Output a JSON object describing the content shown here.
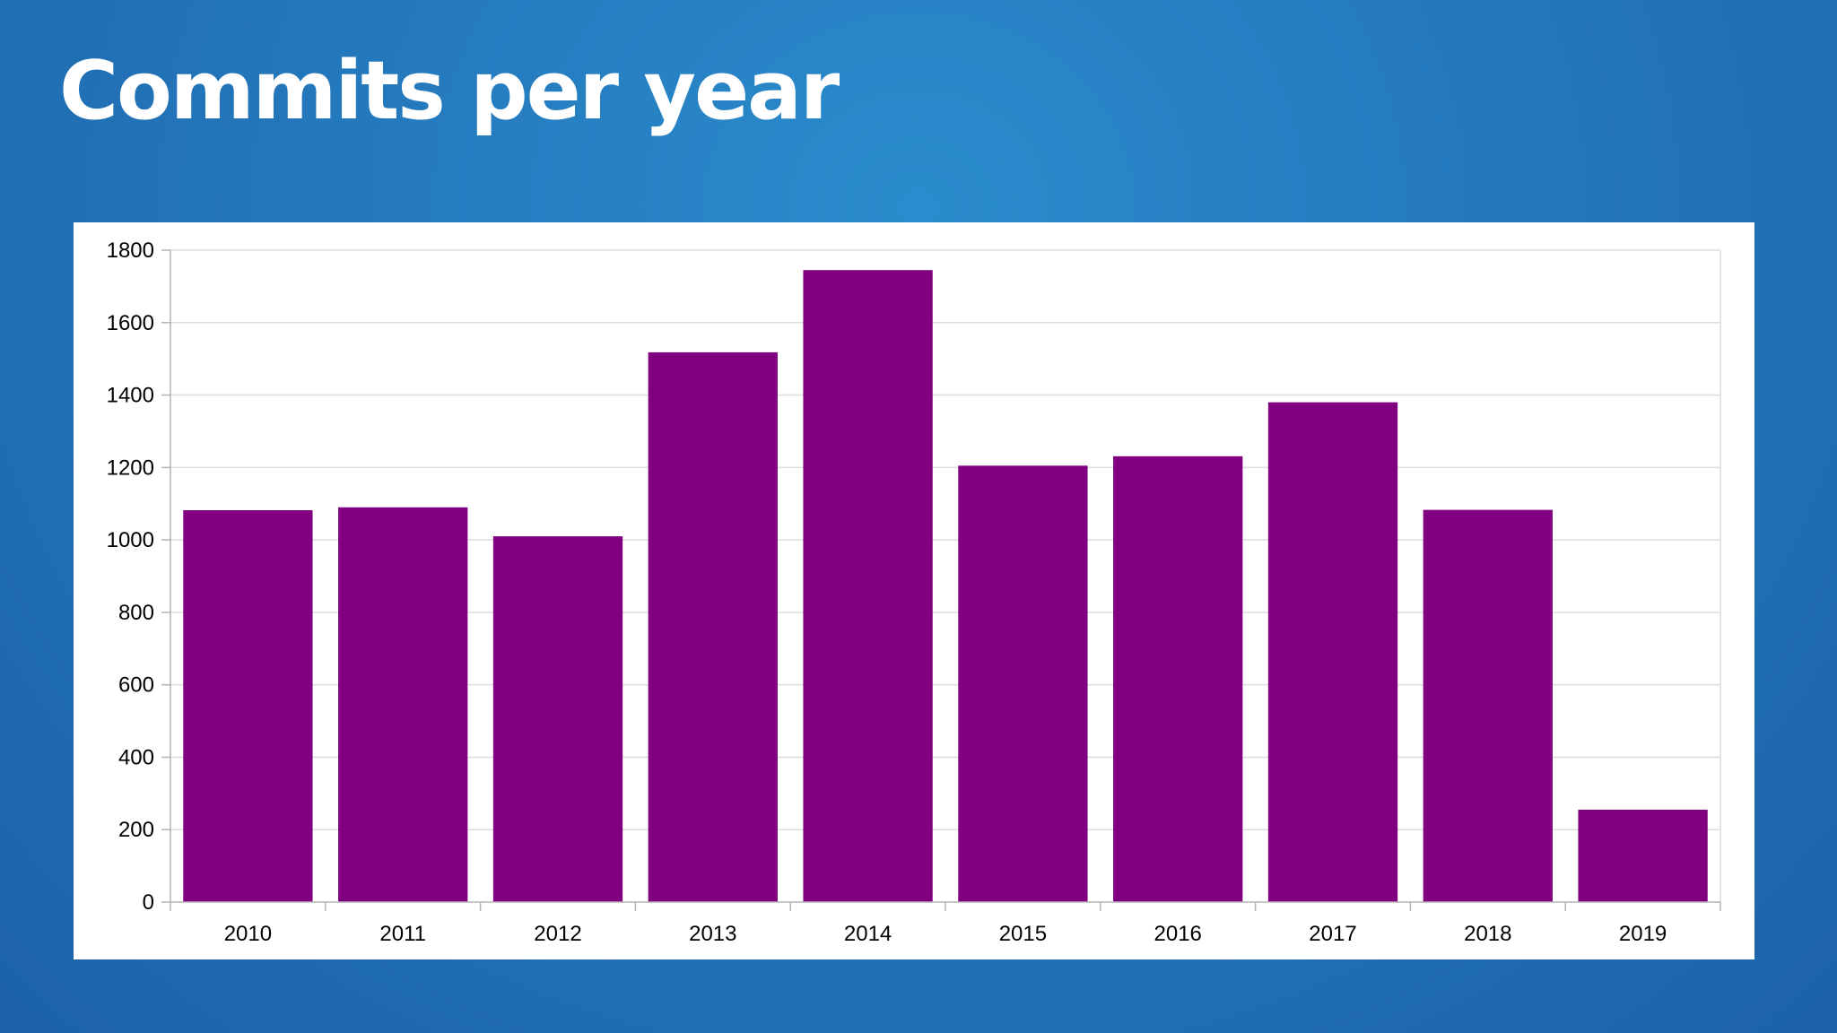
{
  "slide": {
    "title": "Commits per year"
  },
  "chart_data": {
    "type": "bar",
    "title": "",
    "xlabel": "",
    "ylabel": "",
    "categories": [
      "2010",
      "2011",
      "2012",
      "2013",
      "2014",
      "2015",
      "2016",
      "2017",
      "2018",
      "2019"
    ],
    "values": [
      1082,
      1090,
      1010,
      1518,
      1745,
      1205,
      1231,
      1380,
      1083,
      255
    ],
    "ylim": [
      0,
      1800
    ],
    "yticks": [
      0,
      200,
      400,
      600,
      800,
      1000,
      1200,
      1400,
      1600,
      1800
    ],
    "grid": true,
    "legend": "none",
    "colors": {
      "bar": "#800080",
      "grid": "#dddddd",
      "axis": "#b3b3b3"
    }
  }
}
